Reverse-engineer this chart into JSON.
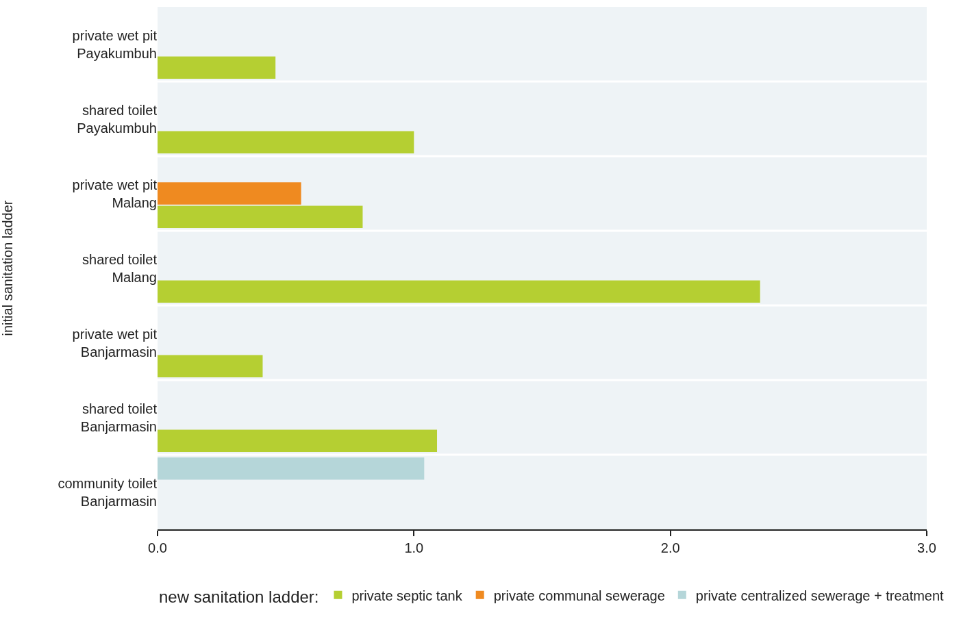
{
  "chart_data": {
    "type": "bar",
    "orientation": "horizontal",
    "ylabel": "initial sanitation ladder",
    "legend_title": "new sanitation ladder:",
    "legend": "bottom",
    "categories": [
      "private wet pit\nPayakumbuh",
      "shared toilet\nPayakumbuh",
      "private wet pit\nMalang",
      "shared toilet\nMalang",
      "private wet pit\nBanjarmasin",
      "shared toilet\nBanjarmasin",
      "community toilet\nBanjarmasin"
    ],
    "series": [
      {
        "name": "private centralized sewerage + treatment",
        "color": "#b5d6d9",
        "values": [
          null,
          null,
          null,
          null,
          null,
          null,
          1.04
        ]
      },
      {
        "name": "private communal sewerage",
        "color": "#ef8a20",
        "values": [
          null,
          null,
          0.56,
          null,
          null,
          null,
          null
        ]
      },
      {
        "name": "private septic tank",
        "color": "#b5cf32",
        "values": [
          0.46,
          1.0,
          0.8,
          2.35,
          0.41,
          1.09,
          null
        ]
      }
    ],
    "xlim": [
      0,
      3
    ],
    "xticks": [
      {
        "value": 0,
        "label": "0.0"
      },
      {
        "value": 1,
        "label": "1.0"
      },
      {
        "value": 2,
        "label": "2.0"
      },
      {
        "value": 3,
        "label": "3.0"
      }
    ],
    "grid": false
  }
}
